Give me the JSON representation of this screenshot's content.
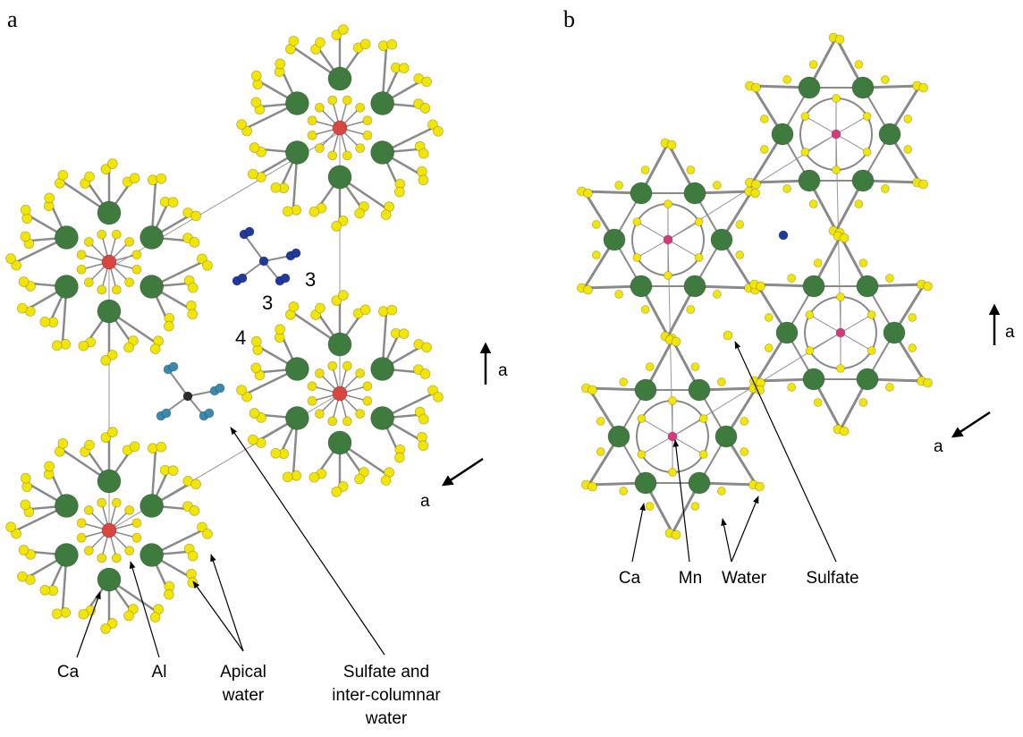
{
  "panel_a": {
    "label": "a",
    "numbers": [
      "3",
      "3",
      "4"
    ],
    "axis_labels": [
      "a",
      "a"
    ],
    "annotations": [
      {
        "lines": [
          "Ca"
        ]
      },
      {
        "lines": [
          "Al"
        ]
      },
      {
        "lines": [
          "Apical",
          "water"
        ]
      },
      {
        "lines": [
          "Sulfate and",
          "inter-columnar",
          "water"
        ]
      }
    ]
  },
  "panel_b": {
    "label": "b",
    "axis_labels": [
      "a",
      "a"
    ],
    "annotations": [
      {
        "lines": [
          "Ca"
        ]
      },
      {
        "lines": [
          "Mn"
        ]
      },
      {
        "lines": [
          "Water"
        ]
      },
      {
        "lines": [
          "Sulfate"
        ]
      }
    ]
  }
}
